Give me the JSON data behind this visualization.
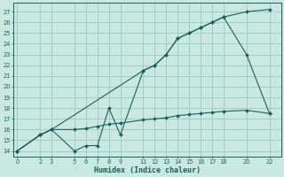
{
  "xlabel": "Humidex (Indice chaleur)",
  "bg_color": "#c8e8e0",
  "grid_color": "#a0c8c0",
  "line_color": "#1a6060",
  "xlim": [
    -0.3,
    23.0
  ],
  "ylim": [
    13.5,
    27.8
  ],
  "xticks": [
    0,
    2,
    3,
    5,
    6,
    7,
    8,
    9,
    11,
    12,
    13,
    14,
    15,
    16,
    17,
    18,
    20,
    22
  ],
  "yticks": [
    14,
    15,
    16,
    17,
    18,
    19,
    20,
    21,
    22,
    23,
    24,
    25,
    26,
    27
  ],
  "line1_x": [
    0,
    2,
    3,
    5,
    6,
    7,
    8,
    9,
    11,
    12,
    13,
    14,
    15,
    16,
    17,
    18,
    20,
    22
  ],
  "line1_y": [
    14,
    15.5,
    16,
    14,
    14.5,
    14.5,
    18,
    15.5,
    21.5,
    22,
    23,
    24.5,
    25,
    25.5,
    26,
    26.5,
    23,
    17.5
  ],
  "line2_x": [
    0,
    2,
    3,
    11,
    12,
    13,
    14,
    15,
    16,
    17,
    18,
    20,
    22
  ],
  "line2_y": [
    14,
    15.5,
    16,
    21.5,
    22,
    23,
    24.5,
    25,
    25.5,
    26,
    26.5,
    27,
    27.2
  ],
  "line3_x": [
    0,
    2,
    3,
    5,
    6,
    7,
    8,
    9,
    11,
    12,
    13,
    14,
    15,
    16,
    17,
    18,
    20,
    22
  ],
  "line3_y": [
    14,
    15.5,
    16,
    16.0,
    16.1,
    16.3,
    16.5,
    16.6,
    16.9,
    17.0,
    17.1,
    17.3,
    17.4,
    17.5,
    17.6,
    17.7,
    17.8,
    17.5
  ]
}
